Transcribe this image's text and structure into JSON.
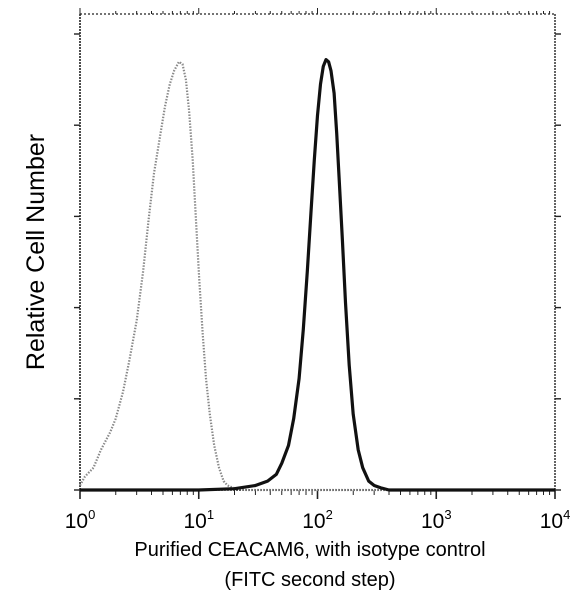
{
  "chart_data": {
    "type": "line",
    "title": "",
    "xlabel_line1": "Purified CEACAM6, with isotype control",
    "xlabel_line2": "(FITC second step)",
    "ylabel": "Relative Cell Number",
    "x_scale": "log",
    "xlim": [
      1,
      10000
    ],
    "ylim": [
      0,
      1
    ],
    "x_ticks": [
      {
        "value": 1,
        "base": "10",
        "exp": "0"
      },
      {
        "value": 10,
        "base": "10",
        "exp": "1"
      },
      {
        "value": 100,
        "base": "10",
        "exp": "2"
      },
      {
        "value": 1000,
        "base": "10",
        "exp": "3"
      },
      {
        "value": 10000,
        "base": "10",
        "exp": "4"
      }
    ],
    "y_ticks_labeled": false,
    "grid": false,
    "legend": "none",
    "series": [
      {
        "role": "isotype control",
        "style": "light dotted gray",
        "color": "#8a8a8a",
        "x": [
          1.0,
          1.1,
          1.3,
          1.5,
          1.8,
          2.0,
          2.3,
          2.6,
          3.0,
          3.4,
          3.8,
          4.2,
          4.7,
          5.2,
          5.7,
          6.2,
          6.8,
          7.3,
          7.8,
          8.3,
          8.9,
          9.5,
          10.1,
          10.8,
          11.5,
          12.4,
          13.5,
          14.8,
          16.2,
          17.5,
          19.5,
          25,
          100,
          10000
        ],
        "y": [
          0.01,
          0.03,
          0.05,
          0.09,
          0.13,
          0.16,
          0.22,
          0.29,
          0.38,
          0.49,
          0.61,
          0.71,
          0.79,
          0.86,
          0.91,
          0.94,
          0.96,
          0.955,
          0.92,
          0.85,
          0.74,
          0.6,
          0.47,
          0.35,
          0.25,
          0.17,
          0.1,
          0.05,
          0.02,
          0.01,
          0.005,
          0.0,
          0.0,
          0.0
        ]
      },
      {
        "role": "CEACAM6",
        "style": "thick solid black",
        "color": "#111111",
        "x": [
          1.0,
          10,
          20,
          30,
          38,
          45,
          50,
          57,
          63,
          70,
          76,
          82,
          88,
          94,
          100,
          106,
          112,
          118,
          124,
          130,
          138,
          145,
          152,
          162,
          172,
          185,
          200,
          220,
          240,
          270,
          300,
          340,
          400,
          1000,
          10000
        ],
        "y": [
          0.0,
          0.0,
          0.003,
          0.01,
          0.02,
          0.035,
          0.06,
          0.1,
          0.16,
          0.25,
          0.36,
          0.49,
          0.62,
          0.74,
          0.84,
          0.91,
          0.95,
          0.965,
          0.96,
          0.94,
          0.89,
          0.8,
          0.7,
          0.56,
          0.42,
          0.28,
          0.17,
          0.09,
          0.05,
          0.02,
          0.01,
          0.005,
          0.0,
          0.0,
          0.0
        ]
      }
    ]
  }
}
